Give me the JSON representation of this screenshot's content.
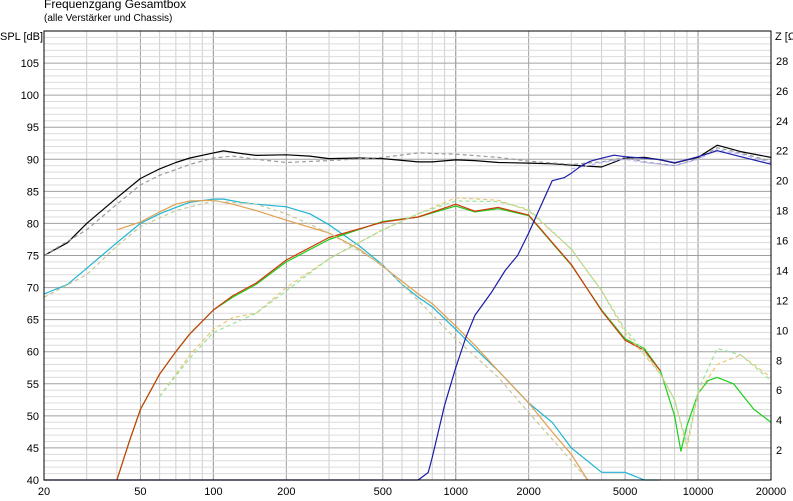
{
  "title": "Frequenzgang Gesamtbox",
  "subtitle": "(alle Verstärker und Chassis)",
  "chart_data": {
    "type": "line",
    "title": "Frequenzgang Gesamtbox",
    "subtitle": "(alle Verstärker und Chassis)",
    "xscale": "log",
    "xlim": [
      20,
      20000
    ],
    "ylim_left": [
      40,
      110
    ],
    "ylim_right": [
      0,
      30
    ],
    "ylabel_left": "SPL [dB]",
    "ylabel_right": "Z [Ω]",
    "x_ticks": [
      20,
      50,
      100,
      200,
      500,
      1000,
      2000,
      5000,
      10000,
      20000
    ],
    "x_tick_labels": [
      "20",
      "50",
      "100",
      "200",
      "500",
      "1000",
      "2000",
      "5000",
      "10000",
      "20000"
    ],
    "y_left_ticks": [
      40,
      45,
      50,
      55,
      60,
      65,
      70,
      75,
      80,
      85,
      90,
      95,
      100,
      105
    ],
    "y_right_ticks": [
      2,
      4,
      6,
      8,
      10,
      12,
      14,
      16,
      18,
      20,
      22,
      24,
      26,
      28
    ],
    "grid": true,
    "series": [
      {
        "color": "#000000",
        "dash": false,
        "axis": "left",
        "x": [
          20,
          25,
          30,
          40,
          50,
          60,
          70,
          80,
          100,
          110,
          130,
          150,
          200,
          250,
          300,
          400,
          500,
          700,
          800,
          1000,
          1200,
          1500,
          2000,
          2500,
          3000,
          4000,
          5000,
          6000,
          7000,
          8000,
          9000,
          10000,
          12000,
          15000,
          20000
        ],
        "y": [
          75,
          77,
          80,
          84,
          87,
          88.5,
          89.5,
          90.2,
          91,
          91.3,
          90.9,
          90.6,
          90.7,
          90.5,
          90.1,
          90.2,
          90.1,
          89.6,
          89.6,
          89.9,
          89.8,
          89.5,
          89.4,
          89.3,
          89.1,
          88.8,
          90.2,
          90.3,
          89.9,
          89.4,
          89.9,
          90.3,
          92.2,
          91.2,
          90.3
        ]
      },
      {
        "color": "#9a9a9a",
        "dash": true,
        "axis": "left",
        "x": [
          20,
          30,
          40,
          50,
          60,
          80,
          100,
          120,
          150,
          200,
          300,
          500,
          700,
          1000,
          1500,
          2000,
          3000,
          4000,
          5000,
          6000,
          8000,
          10000,
          12000,
          15000,
          20000
        ],
        "y": [
          75,
          79,
          83,
          86,
          87.5,
          89.2,
          90.2,
          90.5,
          90,
          89.5,
          89.8,
          90.3,
          91,
          90.8,
          90.3,
          89.7,
          89.2,
          89.6,
          90.3,
          89.6,
          89,
          90.1,
          91.8,
          91,
          89.7
        ]
      },
      {
        "color": "#b0b0ff",
        "dash": true,
        "axis": "left",
        "x": [
          3000,
          4000,
          5000,
          6000,
          8000,
          10000,
          12000,
          15000,
          20000
        ],
        "y": [
          88.5,
          89.5,
          90,
          89.5,
          89,
          90,
          91.5,
          90.8,
          89.5
        ]
      },
      {
        "color": "#1eb4d2",
        "dash": false,
        "axis": "left",
        "x": [
          20,
          25,
          30,
          40,
          50,
          60,
          70,
          80,
          100,
          110,
          130,
          150,
          200,
          250,
          300,
          400,
          500,
          600,
          700,
          800,
          1000,
          1200,
          1500,
          2000,
          2500,
          3000,
          4000,
          5000,
          6000,
          7000
        ],
        "y": [
          69,
          70.5,
          73,
          77,
          80,
          81.5,
          82.5,
          83.3,
          83.8,
          83.8,
          83.3,
          83,
          82.6,
          81.5,
          79.8,
          76.5,
          73.5,
          70.5,
          68.5,
          67,
          63.5,
          60.5,
          57,
          52,
          49,
          45,
          41.2,
          41.2,
          40,
          40
        ]
      },
      {
        "color": "#1bcf1b",
        "dash": false,
        "axis": "left",
        "x": [
          40,
          45,
          50,
          60,
          70,
          80,
          100,
          120,
          150,
          200,
          300,
          500,
          700,
          1000,
          1200,
          1500,
          2000,
          3000,
          4000,
          5000,
          6000,
          7000,
          8000,
          8500,
          9000,
          10000,
          11000,
          12000,
          14000,
          17000,
          20000
        ],
        "y": [
          40,
          46,
          51,
          56.5,
          60,
          62.8,
          66.5,
          68.5,
          70.5,
          74,
          77.5,
          80.3,
          81,
          82.7,
          81.8,
          82.3,
          81.2,
          73.5,
          66.5,
          62,
          60.5,
          57,
          50,
          44.5,
          48.5,
          53.5,
          55.5,
          56,
          55,
          51,
          49
        ]
      },
      {
        "color": "#d03a0a",
        "dash": false,
        "axis": "left",
        "x": [
          40,
          45,
          50,
          60,
          70,
          80,
          100,
          120,
          150,
          200,
          300,
          500,
          700,
          1000,
          1200,
          1500,
          2000,
          3000,
          4000,
          5000,
          6000,
          7000
        ],
        "y": [
          40,
          46,
          51,
          56.5,
          60,
          62.8,
          66.5,
          68.7,
          70.7,
          74.3,
          77.8,
          80.2,
          81,
          83,
          81.9,
          82.5,
          81.3,
          73.6,
          66.4,
          61.8,
          60.2,
          57
        ]
      },
      {
        "color": "#e0a050",
        "dash": false,
        "axis": "left",
        "x": [
          40,
          50,
          60,
          70,
          80,
          100,
          120,
          150,
          200,
          300,
          400,
          500,
          600,
          700,
          800,
          1000,
          1200,
          1500,
          2000,
          2500,
          3000,
          3500
        ],
        "y": [
          79,
          80.2,
          81.8,
          83,
          83.5,
          83.6,
          83,
          82,
          80.5,
          78.5,
          76,
          73.3,
          71,
          69,
          67.5,
          64,
          61,
          57,
          52,
          47.5,
          44,
          40
        ]
      },
      {
        "color": "#c8c89a",
        "dash": true,
        "axis": "left",
        "x": [
          20,
          30,
          40,
          50,
          70,
          100,
          150,
          200,
          300,
          500,
          700,
          1000,
          1500,
          2000,
          3000,
          3500
        ],
        "y": [
          68.5,
          72,
          76.5,
          79.5,
          82,
          83.5,
          83,
          81.5,
          78.5,
          73.5,
          68,
          62,
          56,
          50.5,
          43,
          40
        ]
      },
      {
        "color": "#e8c870",
        "dash": true,
        "axis": "left",
        "x": [
          60,
          70,
          80,
          100,
          120,
          150,
          200,
          300,
          500,
          700,
          1000,
          1500,
          2000,
          3000,
          4000,
          5000,
          6000,
          7000,
          8000,
          9000,
          10000,
          12000,
          15000,
          20000
        ],
        "y": [
          53,
          56.5,
          59.5,
          63.5,
          65.3,
          66,
          70,
          74.5,
          79,
          81.5,
          84,
          83.6,
          82,
          76,
          69.5,
          63,
          59.5,
          56.5,
          52.5,
          45,
          53.5,
          58,
          59.5,
          56
        ]
      },
      {
        "color": "#9ae09a",
        "dash": true,
        "axis": "left",
        "x": [
          60,
          80,
          100,
          150,
          200,
          300,
          500,
          700,
          1000,
          1500,
          2000,
          3000,
          4000,
          5000,
          6000,
          7000,
          8000,
          9000,
          10000,
          12000,
          15000,
          20000
        ],
        "y": [
          53,
          59,
          63,
          66,
          69.5,
          74.5,
          79,
          81.5,
          83.5,
          83.4,
          82.2,
          76,
          69.5,
          63.5,
          60,
          56.5,
          52.5,
          45.5,
          54,
          60.5,
          59.5,
          55.5
        ]
      },
      {
        "color": "#1c1ca8",
        "dash": false,
        "axis": "right",
        "x": [
          20,
          700,
          770,
          800,
          900,
          1000,
          1100,
          1200,
          1400,
          1600,
          1800,
          2000,
          2200,
          2500,
          2800,
          3000,
          3300,
          3600,
          4000,
          4500,
          5000,
          6000,
          7000,
          8000,
          9000,
          10000,
          12000,
          15000,
          20000
        ],
        "y": [
          0,
          0,
          0.5,
          1.5,
          5,
          7.5,
          9.5,
          11,
          12.5,
          14,
          15,
          16.5,
          18,
          20,
          20.2,
          20.5,
          21,
          21.3,
          21.5,
          21.7,
          21.6,
          21.5,
          21.4,
          21.2,
          21.4,
          21.6,
          22,
          21.6,
          21.1
        ]
      }
    ]
  }
}
